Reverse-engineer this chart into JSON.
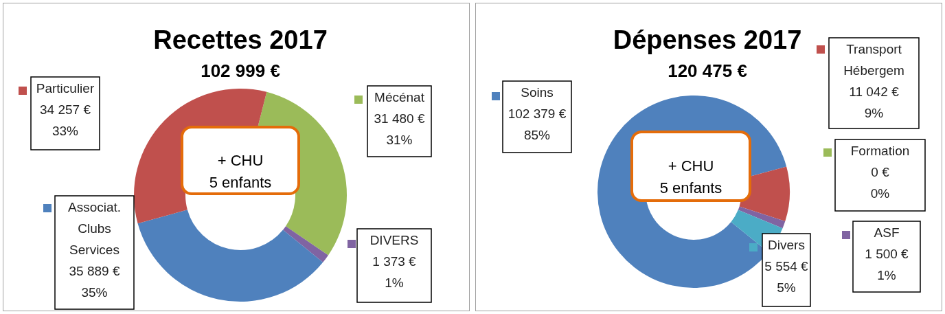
{
  "chart_data": [
    {
      "type": "donut",
      "title": "Recettes 2017",
      "subtitle": "102 999 €",
      "categories": [
        "Mécénat",
        "DIVERS",
        "Associat. Clubs Services",
        "Particulier"
      ],
      "values": [
        31480,
        1373,
        35889,
        34257
      ],
      "colors": [
        "#9bbb59",
        "#8064a2",
        "#4f81bd",
        "#c0504d"
      ],
      "value_labels": [
        "31 480 €\n31%",
        "1 373 €\n1%",
        "35 889 €\n35%",
        "34 257 €\n33%"
      ],
      "annotations": [
        "+ CHU\n5 enfants"
      ],
      "legend": "top left"
    },
    {
      "type": "donut",
      "title": "Dépenses 2017",
      "subtitle": "120 475 €",
      "categories": [
        "Soins",
        "Transport Hébergem",
        "Formation",
        "ASF",
        "Divers"
      ],
      "values": [
        102379,
        11042,
        0,
        1500,
        5554
      ],
      "colors": [
        "#4f81bd",
        "#c0504d",
        "#9bbb59",
        "#8064a2",
        "#4bacc6"
      ],
      "value_labels": [
        "102 379 €\n85%",
        "11 042 €\n9%",
        "0 €\n0%",
        "1 500 €\n1%",
        "5 554 €\n5%"
      ],
      "annotations": [
        "+ CHU\n5 enfants"
      ],
      "legend": "right"
    }
  ]
}
